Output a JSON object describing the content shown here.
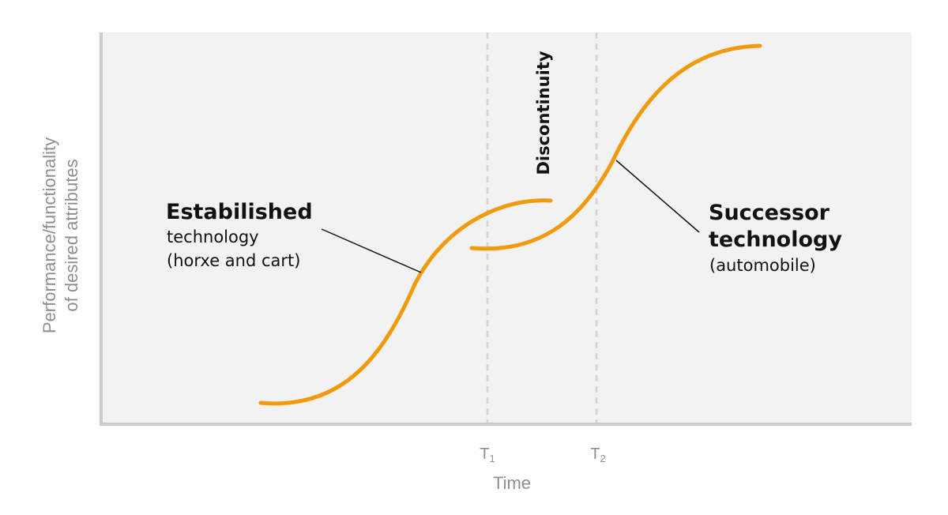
{
  "colors": {
    "plot_bg": "#f2f2f2",
    "axis": "#cccccc",
    "curve": "#f09a0e",
    "guide": "#d4d4d4",
    "leader": "#111111",
    "axis_text": "#8f8f8f",
    "label_text": "#111111"
  },
  "axes": {
    "y_label_line1": "Performance/functionality",
    "y_label_line2": "of desired attributes",
    "x_label": "Time",
    "t1_main": "T",
    "t1_sub": "1",
    "t2_main": "T",
    "t2_sub": "2"
  },
  "established": {
    "title": "Estabilished",
    "line1": "technology",
    "line2": "(horxe and cart)"
  },
  "successor": {
    "title_line1": "Successor",
    "title_line2": "technology",
    "line1": "(automobile)"
  },
  "discontinuity": {
    "label": "Discontinuity"
  }
}
